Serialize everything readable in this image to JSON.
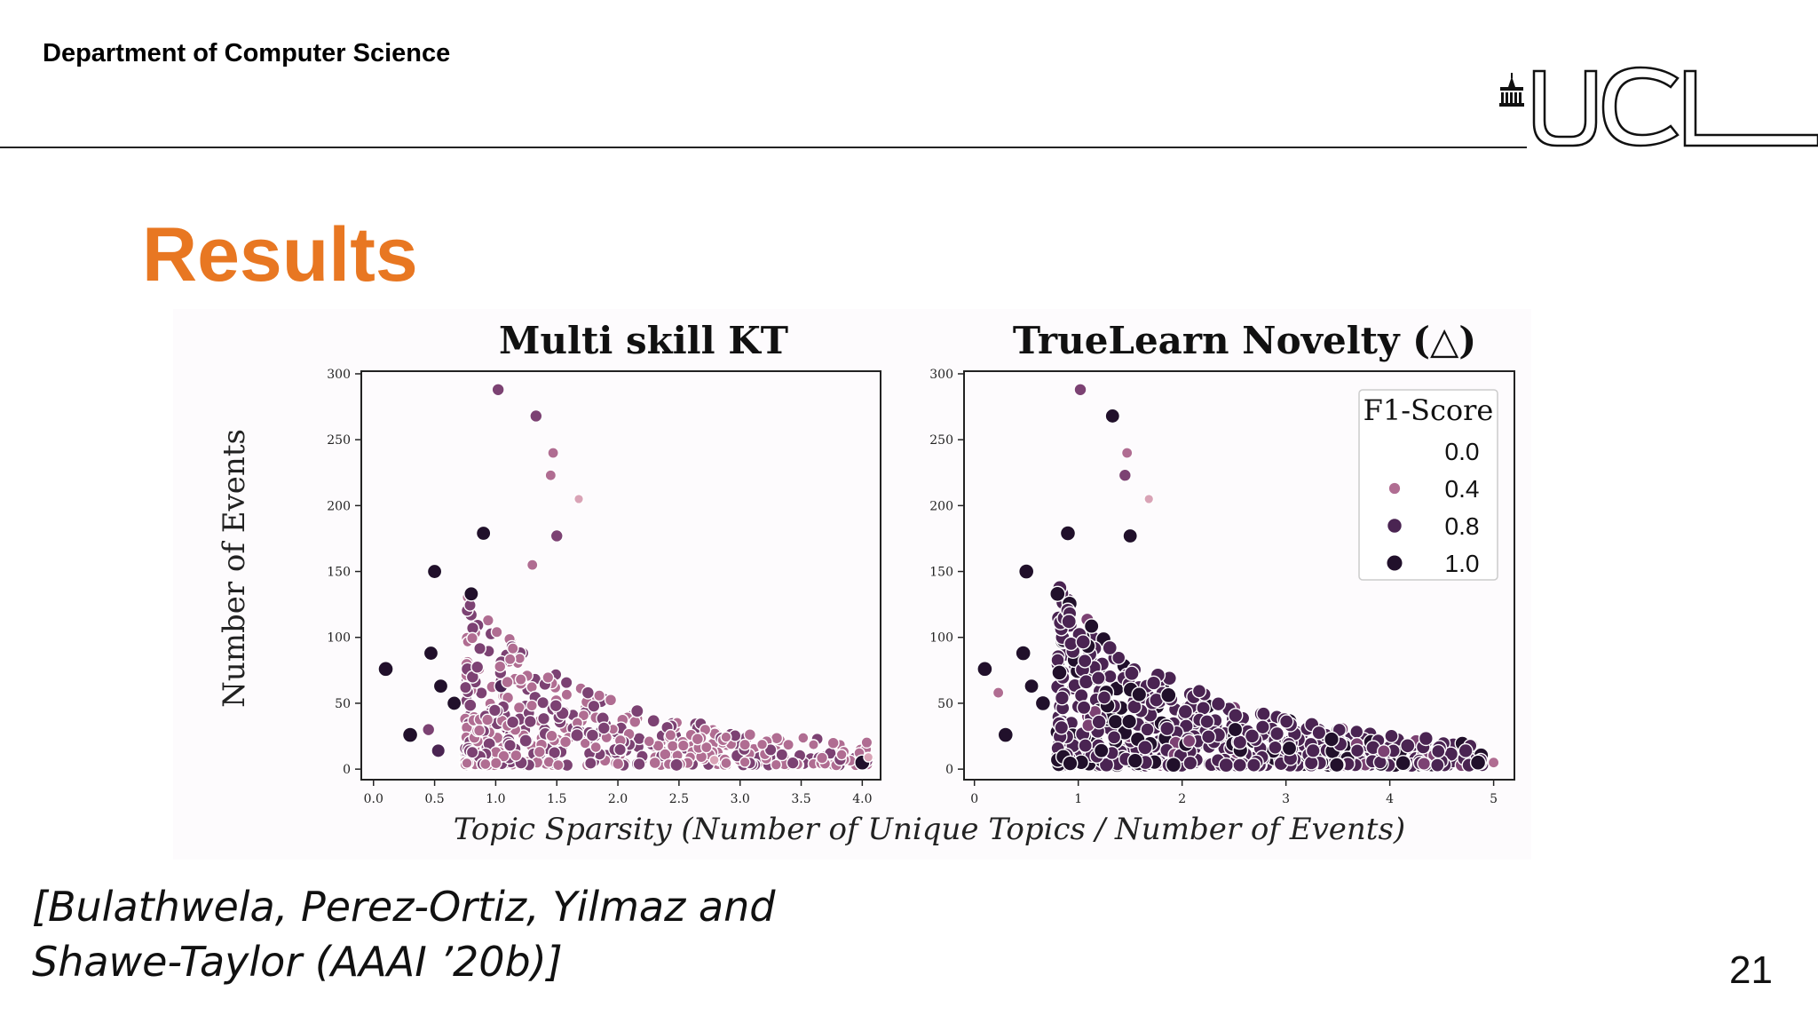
{
  "header": {
    "department": "Department of Computer Science",
    "logo_text": "UCL"
  },
  "slide": {
    "title": "Results",
    "page_number": "21",
    "citation_line1": "[Bulathwela, Perez-Ortiz, Yilmaz and",
    "citation_line2": "Shawe-Taylor (AAAI ’20b)]"
  },
  "colors": {
    "title": "#e87722",
    "c0": "#f6dde6",
    "c1": "#d9a3b6",
    "c2": "#b06d92",
    "c3": "#7c4273",
    "c4": "#4a2452",
    "c5": "#21102b"
  },
  "figure": {
    "shared_xlabel": "Topic Sparsity (Number of Unique Topics / Number of Events)"
  },
  "chart_data": [
    {
      "type": "scatter",
      "title": "Multi skill KT",
      "ylabel": "Number of Events",
      "xlim": [
        -0.1,
        4.15
      ],
      "ylim": [
        -8,
        302
      ],
      "xticks": [
        "0.0",
        "0.5",
        "1.0",
        "1.5",
        "2.0",
        "2.5",
        "3.0",
        "3.5",
        "4.0"
      ],
      "yticks": [
        "0",
        "50",
        "100",
        "150",
        "200",
        "250",
        "300"
      ],
      "hue": "F1-Score",
      "highlighted_points": [
        {
          "x": 1.02,
          "y": 288,
          "f1": 0.6
        },
        {
          "x": 1.33,
          "y": 268,
          "f1": 0.6
        },
        {
          "x": 1.47,
          "y": 240,
          "f1": 0.4
        },
        {
          "x": 1.45,
          "y": 223,
          "f1": 0.4
        },
        {
          "x": 1.68,
          "y": 205,
          "f1": 0.2
        },
        {
          "x": 0.9,
          "y": 179,
          "f1": 0.9
        },
        {
          "x": 1.5,
          "y": 177,
          "f1": 0.6
        },
        {
          "x": 0.5,
          "y": 150,
          "f1": 0.9
        },
        {
          "x": 0.8,
          "y": 133,
          "f1": 0.9
        },
        {
          "x": 1.3,
          "y": 155,
          "f1": 0.4
        },
        {
          "x": 0.1,
          "y": 76,
          "f1": 1.0
        },
        {
          "x": 0.47,
          "y": 88,
          "f1": 0.9
        },
        {
          "x": 0.55,
          "y": 63,
          "f1": 0.9
        },
        {
          "x": 0.3,
          "y": 26,
          "f1": 1.0
        },
        {
          "x": 0.66,
          "y": 50,
          "f1": 0.9
        },
        {
          "x": 0.45,
          "y": 30,
          "f1": 0.6
        },
        {
          "x": 0.53,
          "y": 14,
          "f1": 0.8
        },
        {
          "x": 4.0,
          "y": 5,
          "f1": 1.0
        },
        {
          "x": 4.05,
          "y": 9,
          "f1": 0.2
        }
      ],
      "cluster": {
        "n": 520,
        "seed": 11,
        "xrange": [
          0.75,
          4.05
        ],
        "ymax": 120,
        "f1_mean": 0.45
      }
    },
    {
      "type": "scatter",
      "title": "TrueLearn Novelty (△)",
      "ylabel": "",
      "xlim": [
        -0.1,
        5.2
      ],
      "ylim": [
        -8,
        302
      ],
      "xticks": [
        "0",
        "1",
        "2",
        "3",
        "4",
        "5"
      ],
      "yticks": [
        "0",
        "50",
        "100",
        "150",
        "200",
        "250",
        "300"
      ],
      "hue": "F1-Score",
      "legend": {
        "title": "F1-Score",
        "placement": "upper-right",
        "entries": [
          "0.0",
          "0.4",
          "0.8",
          "1.0"
        ],
        "entry_values": [
          0.0,
          0.4,
          0.8,
          1.0
        ]
      },
      "highlighted_points": [
        {
          "x": 1.02,
          "y": 288,
          "f1": 0.6
        },
        {
          "x": 1.33,
          "y": 268,
          "f1": 0.9
        },
        {
          "x": 1.47,
          "y": 240,
          "f1": 0.4
        },
        {
          "x": 1.45,
          "y": 223,
          "f1": 0.6
        },
        {
          "x": 1.68,
          "y": 205,
          "f1": 0.2
        },
        {
          "x": 0.9,
          "y": 179,
          "f1": 1.0
        },
        {
          "x": 1.5,
          "y": 177,
          "f1": 0.9
        },
        {
          "x": 0.5,
          "y": 150,
          "f1": 1.0
        },
        {
          "x": 0.8,
          "y": 133,
          "f1": 1.0
        },
        {
          "x": 0.1,
          "y": 76,
          "f1": 1.0
        },
        {
          "x": 0.47,
          "y": 88,
          "f1": 1.0
        },
        {
          "x": 0.55,
          "y": 63,
          "f1": 0.9
        },
        {
          "x": 0.3,
          "y": 26,
          "f1": 1.0
        },
        {
          "x": 0.66,
          "y": 50,
          "f1": 1.0
        },
        {
          "x": 0.23,
          "y": 58,
          "f1": 0.4
        },
        {
          "x": 4.85,
          "y": 5,
          "f1": 1.0
        },
        {
          "x": 5.0,
          "y": 5,
          "f1": 0.4
        }
      ],
      "cluster": {
        "n": 620,
        "seed": 23,
        "xrange": [
          0.8,
          4.9
        ],
        "ymax": 125,
        "f1_mean": 0.8
      }
    }
  ]
}
